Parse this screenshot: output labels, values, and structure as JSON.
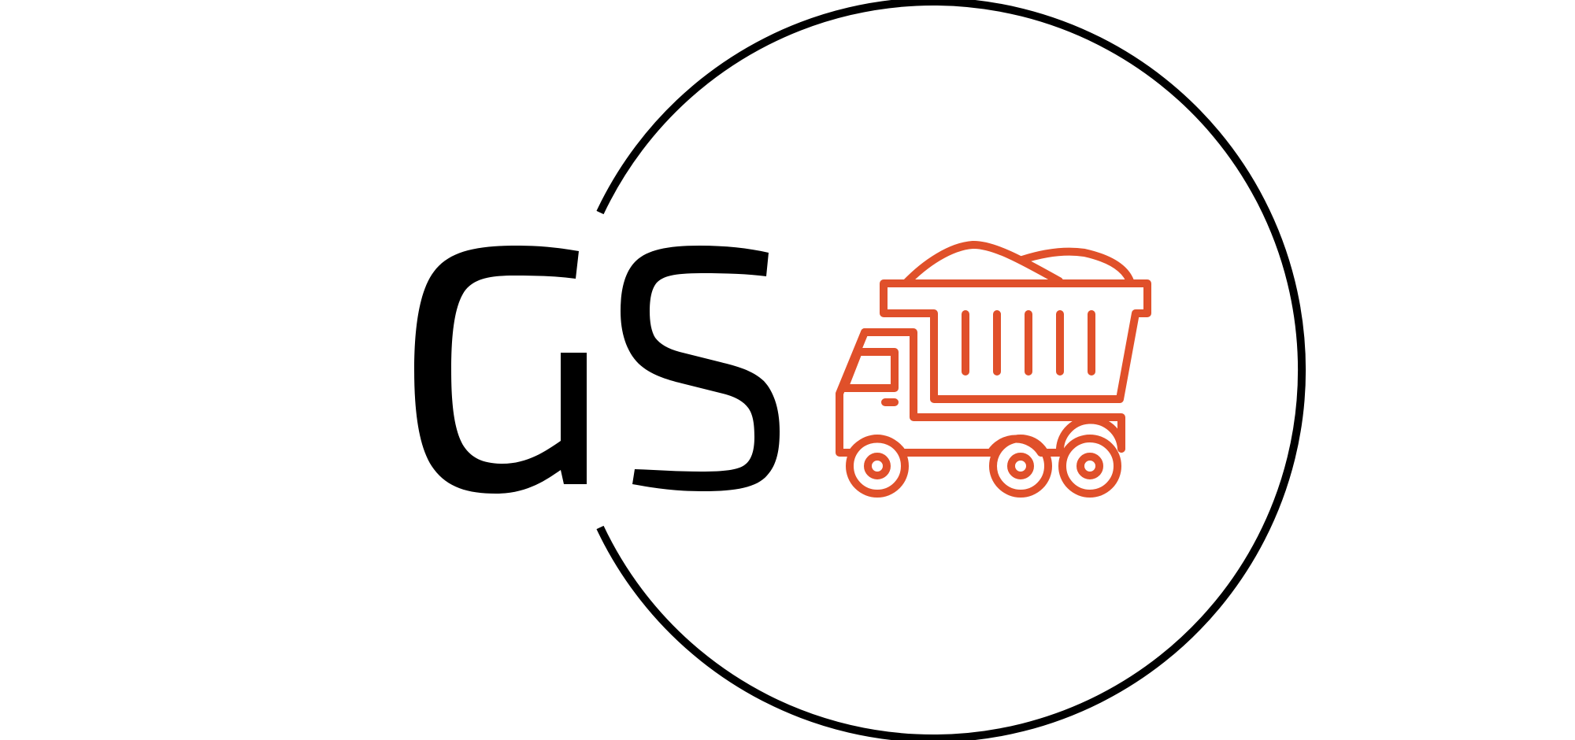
{
  "logo": {
    "monogram": "GS",
    "icon": "dump-truck-icon",
    "colors": {
      "background": "#ffffff",
      "ring": "#000000",
      "letters": "#000000",
      "truck": "#e0502a"
    }
  }
}
